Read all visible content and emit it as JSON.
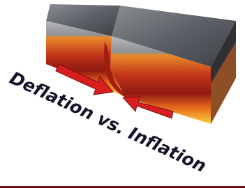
{
  "caption": "Deflation vs. Inflation"
}
